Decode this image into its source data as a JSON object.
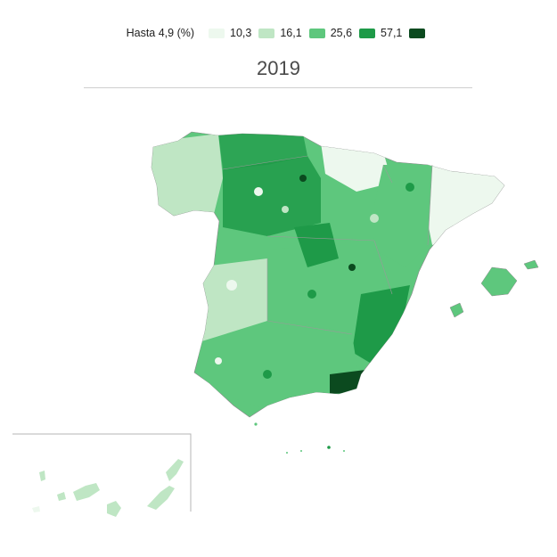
{
  "legend": {
    "first_label": "Hasta 4,9 (%)",
    "items": [
      {
        "label": "10,3",
        "color": "#edf8ee"
      },
      {
        "label": "16,1",
        "color": "#bfe6c4"
      },
      {
        "label": "25,6",
        "color": "#5ec77d"
      },
      {
        "label": "57,1",
        "color": "#1e9a48"
      },
      {
        "label": "",
        "color": "#0b4a1f"
      }
    ],
    "lowest_color": "#f7fcf7"
  },
  "title": "2019"
}
